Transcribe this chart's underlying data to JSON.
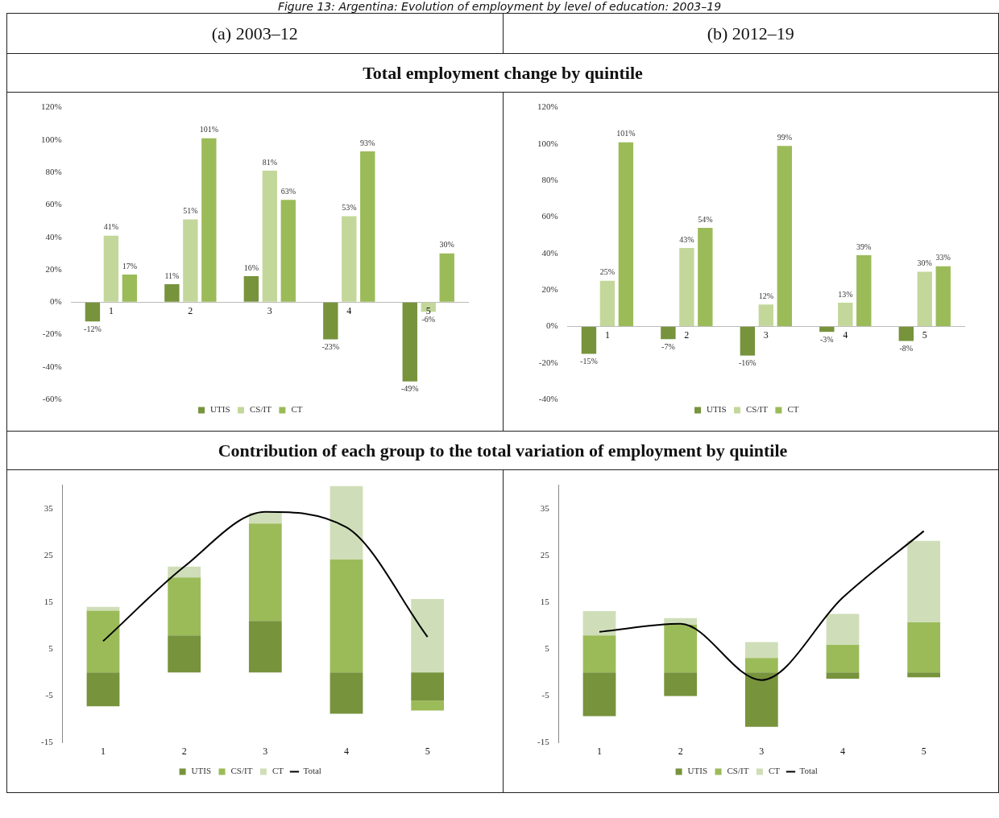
{
  "chart_data": [
    {
      "type": "bar",
      "title": "Total employment change by quintile",
      "subtitle": "(a) 2003–12",
      "annotations": [
        "Figure 13: Argentina: Evolution of employment by level of education: 2003–19"
      ],
      "categories": [
        "1",
        "2",
        "3",
        "4",
        "5"
      ],
      "series": [
        {
          "name": "UTIS",
          "color": "#77933c",
          "values": [
            -12,
            11,
            16,
            -23,
            -49
          ],
          "value_labels": [
            "-12%",
            "11%",
            "16%",
            "-23%",
            "-49%"
          ]
        },
        {
          "name": "CS/IT",
          "color": "#c4d79b",
          "values": [
            41,
            51,
            81,
            53,
            -6
          ],
          "value_labels": [
            "41%",
            "51%",
            "81%",
            "53%",
            "-6%"
          ]
        },
        {
          "name": "CT",
          "color": "#9bbb59",
          "values": [
            17,
            101,
            63,
            93,
            30
          ],
          "value_labels": [
            "17%",
            "101%",
            "63%",
            "93%",
            "30%"
          ]
        }
      ],
      "ylim": [
        -60,
        120
      ],
      "yticks": [
        {
          "value": -60,
          "label": "-60%"
        },
        {
          "value": -40,
          "label": "-40%"
        },
        {
          "value": -20,
          "label": "-20%"
        },
        {
          "value": 0,
          "label": "0%"
        },
        {
          "value": 20,
          "label": "20%"
        },
        {
          "value": 40,
          "label": "40%"
        },
        {
          "value": 60,
          "label": "60%"
        },
        {
          "value": 80,
          "label": "80%"
        },
        {
          "value": 100,
          "label": "100%"
        },
        {
          "value": 120,
          "label": "120%"
        }
      ],
      "grid": false,
      "legend": "bottom"
    },
    {
      "type": "bar",
      "subtitle": "(b) 2012–19",
      "categories": [
        "1",
        "2",
        "3",
        "4",
        "5"
      ],
      "series": [
        {
          "name": "UTIS",
          "color": "#77933c",
          "values": [
            -15,
            -7,
            -16,
            -3,
            -8
          ],
          "value_labels": [
            "-15%",
            "-7%",
            "-16%",
            "-3%",
            "-8%"
          ]
        },
        {
          "name": "CS/IT",
          "color": "#c4d79b",
          "values": [
            25,
            43,
            12,
            13,
            30
          ],
          "value_labels": [
            "25%",
            "43%",
            "12%",
            "13%",
            "30%"
          ]
        },
        {
          "name": "CT",
          "color": "#9bbb59",
          "values": [
            101,
            54,
            99,
            39,
            33
          ],
          "value_labels": [
            "101%",
            "54%",
            "99%",
            "39%",
            "33%"
          ]
        }
      ],
      "ylim": [
        -40,
        120
      ],
      "yticks": [
        {
          "value": -40,
          "label": "-40%"
        },
        {
          "value": -20,
          "label": "-20%"
        },
        {
          "value": 0,
          "label": "0%"
        },
        {
          "value": 20,
          "label": "20%"
        },
        {
          "value": 40,
          "label": "40%"
        },
        {
          "value": 60,
          "label": "60%"
        },
        {
          "value": 80,
          "label": "80%"
        },
        {
          "value": 100,
          "label": "100%"
        },
        {
          "value": 120,
          "label": "120%"
        }
      ],
      "grid": false,
      "legend": "bottom"
    },
    {
      "type": "bar",
      "title": "Contribution of each group to the total variation of employment by quintile",
      "stacked": true,
      "categories": [
        "1",
        "2",
        "3",
        "4",
        "5"
      ],
      "series": [
        {
          "name": "UTIS",
          "color": "#77933c",
          "values": [
            -7.2,
            7.9,
            11.0,
            -8.8,
            -6.0
          ]
        },
        {
          "name": "CS/IT",
          "color": "#9bbb59",
          "values": [
            13.2,
            12.4,
            20.8,
            24.1,
            -2.1
          ]
        },
        {
          "name": "CT",
          "color": "#cfdeb8",
          "values": [
            0.8,
            2.3,
            2.3,
            15.7,
            15.7
          ]
        },
        {
          "name": "Total",
          "type": "line",
          "color": "#000000",
          "marker": "none",
          "values": [
            6.7,
            22.6,
            34.3,
            31.0,
            7.6
          ]
        }
      ],
      "ylim": [
        -15,
        40
      ],
      "yticks": [
        -15,
        -5,
        5,
        15,
        25,
        35
      ],
      "grid": false,
      "legend": "bottom"
    },
    {
      "type": "bar",
      "stacked": true,
      "categories": [
        "1",
        "2",
        "3",
        "4",
        "5"
      ],
      "series": [
        {
          "name": "UTIS",
          "color": "#77933c",
          "values": [
            -9.3,
            -5.0,
            -11.6,
            -1.3,
            -1.0
          ]
        },
        {
          "name": "CS/IT",
          "color": "#9bbb59",
          "values": [
            7.9,
            10.2,
            3.1,
            5.9,
            10.7
          ]
        },
        {
          "name": "CT",
          "color": "#cfdeb8",
          "values": [
            5.2,
            1.4,
            3.4,
            6.6,
            17.4
          ]
        },
        {
          "name": "Total",
          "type": "line",
          "color": "#000000",
          "marker": "none",
          "values": [
            8.7,
            10.4,
            -1.6,
            16.0,
            30.2
          ]
        }
      ],
      "ylim": [
        -15,
        40
      ],
      "yticks": [
        -15,
        -5,
        5,
        15,
        25,
        35
      ],
      "grid": false,
      "legend": "bottom"
    }
  ]
}
